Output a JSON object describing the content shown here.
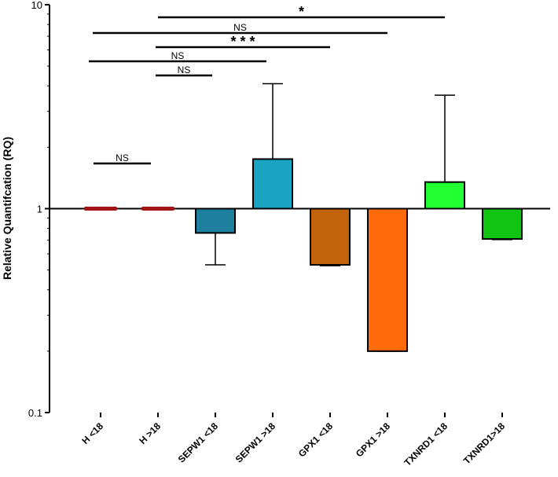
{
  "chart_data": {
    "type": "bar",
    "scale": "log",
    "baseline": 1,
    "title": "",
    "xlabel": "",
    "ylabel": "Relative Quantifcation (RQ)",
    "ylim": [
      0.1,
      10
    ],
    "yticks": [
      {
        "value": 10,
        "label": "10"
      },
      {
        "value": 1,
        "label": "1"
      },
      {
        "value": 0.1,
        "label": "0.1"
      }
    ],
    "categories": [
      "H <18",
      "H >18",
      "SEPW1 <18",
      "SEPW1 >18",
      "GPX1 <18",
      "GPX1 >18",
      "TXNRD1 <18",
      "TXNRD1>18"
    ],
    "values": [
      1.0,
      1.0,
      0.76,
      1.75,
      0.53,
      0.2,
      1.35,
      0.71
    ],
    "error_bars": [
      null,
      null,
      0.53,
      4.1,
      0.525,
      0.2,
      3.6,
      0.705
    ],
    "colors": [
      "#a31515",
      "#a31515",
      "#1f7f9e",
      "#1aa3c2",
      "#c2620a",
      "#ff6a0a",
      "#22ff33",
      "#12c412"
    ],
    "significance": [
      {
        "from": 1,
        "to": 6,
        "label": "*"
      },
      {
        "from": 0,
        "to": 5,
        "label": "NS"
      },
      {
        "from": 1,
        "to": 4,
        "label": "* * *"
      },
      {
        "from": 0,
        "to": 3,
        "label": "NS"
      },
      {
        "from": 1,
        "to": 2,
        "label": "NS"
      },
      {
        "from": 0,
        "to": 1,
        "label": "NS"
      }
    ]
  }
}
